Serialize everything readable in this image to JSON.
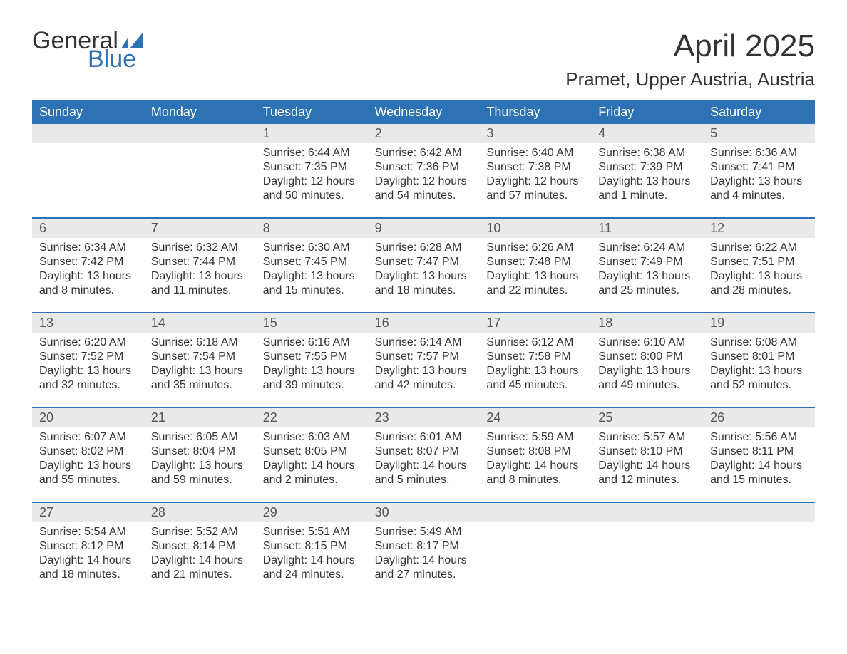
{
  "logo": {
    "general": "General",
    "blue": "Blue",
    "flag_color": "#2d72b5"
  },
  "title": "April 2025",
  "location": "Pramet, Upper Austria, Austria",
  "colors": {
    "header_bg": "#2d72b5",
    "header_text": "#ffffff",
    "daynum_bg": "#e9e9e9",
    "text": "#333333",
    "sep": "#2d72b5"
  },
  "day_headers": [
    "Sunday",
    "Monday",
    "Tuesday",
    "Wednesday",
    "Thursday",
    "Friday",
    "Saturday"
  ],
  "weeks": [
    {
      "nums": [
        "",
        "",
        "1",
        "2",
        "3",
        "4",
        "5"
      ],
      "cells": [
        "",
        "",
        "Sunrise: 6:44 AM\nSunset: 7:35 PM\nDaylight: 12 hours and 50 minutes.",
        "Sunrise: 6:42 AM\nSunset: 7:36 PM\nDaylight: 12 hours and 54 minutes.",
        "Sunrise: 6:40 AM\nSunset: 7:38 PM\nDaylight: 12 hours and 57 minutes.",
        "Sunrise: 6:38 AM\nSunset: 7:39 PM\nDaylight: 13 hours and 1 minute.",
        "Sunrise: 6:36 AM\nSunset: 7:41 PM\nDaylight: 13 hours and 4 minutes."
      ]
    },
    {
      "nums": [
        "6",
        "7",
        "8",
        "9",
        "10",
        "11",
        "12"
      ],
      "cells": [
        "Sunrise: 6:34 AM\nSunset: 7:42 PM\nDaylight: 13 hours and 8 minutes.",
        "Sunrise: 6:32 AM\nSunset: 7:44 PM\nDaylight: 13 hours and 11 minutes.",
        "Sunrise: 6:30 AM\nSunset: 7:45 PM\nDaylight: 13 hours and 15 minutes.",
        "Sunrise: 6:28 AM\nSunset: 7:47 PM\nDaylight: 13 hours and 18 minutes.",
        "Sunrise: 6:26 AM\nSunset: 7:48 PM\nDaylight: 13 hours and 22 minutes.",
        "Sunrise: 6:24 AM\nSunset: 7:49 PM\nDaylight: 13 hours and 25 minutes.",
        "Sunrise: 6:22 AM\nSunset: 7:51 PM\nDaylight: 13 hours and 28 minutes."
      ]
    },
    {
      "nums": [
        "13",
        "14",
        "15",
        "16",
        "17",
        "18",
        "19"
      ],
      "cells": [
        "Sunrise: 6:20 AM\nSunset: 7:52 PM\nDaylight: 13 hours and 32 minutes.",
        "Sunrise: 6:18 AM\nSunset: 7:54 PM\nDaylight: 13 hours and 35 minutes.",
        "Sunrise: 6:16 AM\nSunset: 7:55 PM\nDaylight: 13 hours and 39 minutes.",
        "Sunrise: 6:14 AM\nSunset: 7:57 PM\nDaylight: 13 hours and 42 minutes.",
        "Sunrise: 6:12 AM\nSunset: 7:58 PM\nDaylight: 13 hours and 45 minutes.",
        "Sunrise: 6:10 AM\nSunset: 8:00 PM\nDaylight: 13 hours and 49 minutes.",
        "Sunrise: 6:08 AM\nSunset: 8:01 PM\nDaylight: 13 hours and 52 minutes."
      ]
    },
    {
      "nums": [
        "20",
        "21",
        "22",
        "23",
        "24",
        "25",
        "26"
      ],
      "cells": [
        "Sunrise: 6:07 AM\nSunset: 8:02 PM\nDaylight: 13 hours and 55 minutes.",
        "Sunrise: 6:05 AM\nSunset: 8:04 PM\nDaylight: 13 hours and 59 minutes.",
        "Sunrise: 6:03 AM\nSunset: 8:05 PM\nDaylight: 14 hours and 2 minutes.",
        "Sunrise: 6:01 AM\nSunset: 8:07 PM\nDaylight: 14 hours and 5 minutes.",
        "Sunrise: 5:59 AM\nSunset: 8:08 PM\nDaylight: 14 hours and 8 minutes.",
        "Sunrise: 5:57 AM\nSunset: 8:10 PM\nDaylight: 14 hours and 12 minutes.",
        "Sunrise: 5:56 AM\nSunset: 8:11 PM\nDaylight: 14 hours and 15 minutes."
      ]
    },
    {
      "nums": [
        "27",
        "28",
        "29",
        "30",
        "",
        "",
        ""
      ],
      "cells": [
        "Sunrise: 5:54 AM\nSunset: 8:12 PM\nDaylight: 14 hours and 18 minutes.",
        "Sunrise: 5:52 AM\nSunset: 8:14 PM\nDaylight: 14 hours and 21 minutes.",
        "Sunrise: 5:51 AM\nSunset: 8:15 PM\nDaylight: 14 hours and 24 minutes.",
        "Sunrise: 5:49 AM\nSunset: 8:17 PM\nDaylight: 14 hours and 27 minutes.",
        "",
        "",
        ""
      ]
    }
  ]
}
